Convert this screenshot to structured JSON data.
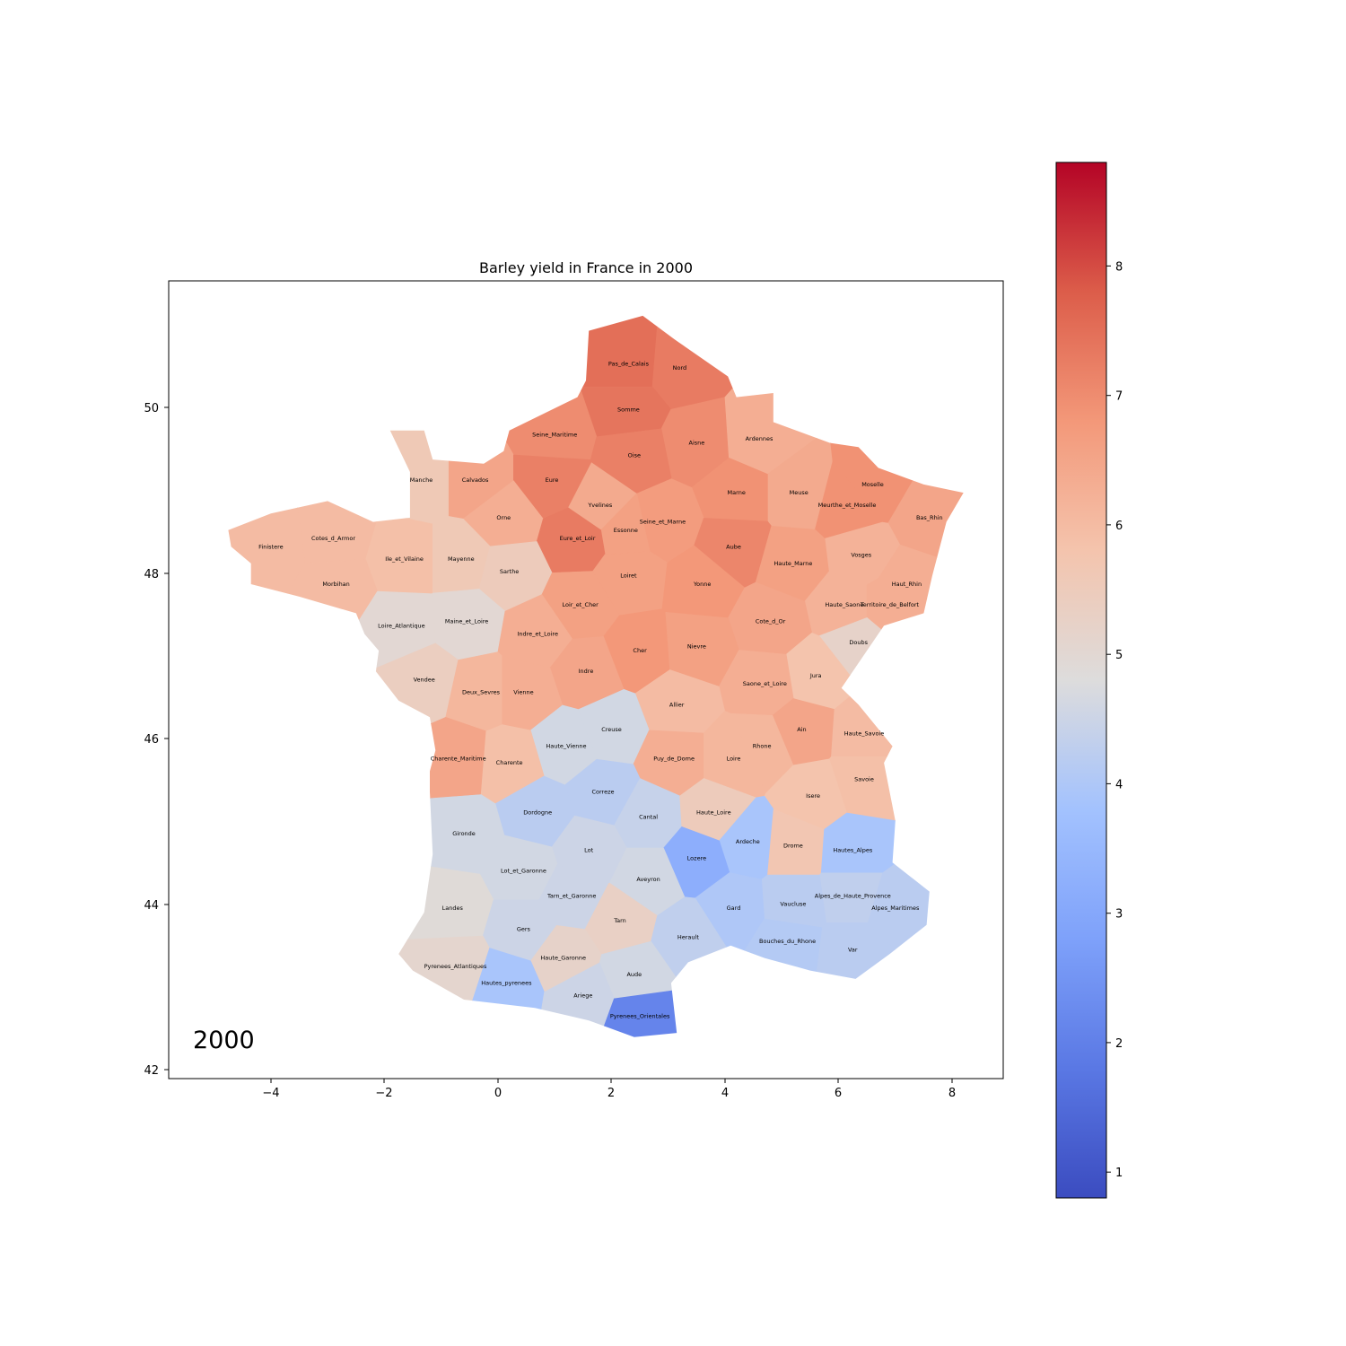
{
  "title": "Barley yield in France in 2000",
  "year_annotation": "2000",
  "colormap": {
    "name": "coolwarm",
    "min": 0.8,
    "max": 8.8,
    "low_color": "#3b4cc0",
    "mid_color": "#dddddd",
    "high_color": "#b40426"
  },
  "x_ticks": [
    "−4",
    "−2",
    "0",
    "2",
    "4",
    "6",
    "8"
  ],
  "y_ticks": [
    "42",
    "44",
    "46",
    "48",
    "50"
  ],
  "colorbar_ticks": [
    "1",
    "2",
    "3",
    "4",
    "5",
    "6",
    "7",
    "8"
  ],
  "chart_data": {
    "type": "choropleth",
    "title": "Barley yield in France in 2000",
    "xlim": [
      -5.8,
      8.9
    ],
    "ylim": [
      41.9,
      51.5
    ],
    "color_range": [
      0.8,
      8.8
    ],
    "regions": [
      {
        "name": "Pas_de_Calais",
        "lon": 2.3,
        "lat": 50.5,
        "value": 7.5
      },
      {
        "name": "Nord",
        "lon": 3.2,
        "lat": 50.45,
        "value": 7.3
      },
      {
        "name": "Somme",
        "lon": 2.3,
        "lat": 49.95,
        "value": 7.4
      },
      {
        "name": "Seine_Maritime",
        "lon": 1.0,
        "lat": 49.65,
        "value": 7.0
      },
      {
        "name": "Aisne",
        "lon": 3.5,
        "lat": 49.55,
        "value": 7.0
      },
      {
        "name": "Ardennes",
        "lon": 4.6,
        "lat": 49.6,
        "value": 6.3
      },
      {
        "name": "Oise",
        "lon": 2.4,
        "lat": 49.4,
        "value": 7.2
      },
      {
        "name": "Calvados",
        "lon": -0.4,
        "lat": 49.1,
        "value": 6.5
      },
      {
        "name": "Manche",
        "lon": -1.35,
        "lat": 49.1,
        "value": 5.6
      },
      {
        "name": "Eure",
        "lon": 0.95,
        "lat": 49.1,
        "value": 7.2
      },
      {
        "name": "Meuse",
        "lon": 5.3,
        "lat": 48.95,
        "value": 6.4
      },
      {
        "name": "Moselle",
        "lon": 6.6,
        "lat": 49.05,
        "value": 6.9
      },
      {
        "name": "Marne",
        "lon": 4.2,
        "lat": 48.95,
        "value": 6.9
      },
      {
        "name": "Yvelines",
        "lon": 1.8,
        "lat": 48.8,
        "value": 6.4
      },
      {
        "name": "Seine_et_Marne",
        "lon": 2.9,
        "lat": 48.6,
        "value": 6.7
      },
      {
        "name": "Essonne",
        "lon": 2.25,
        "lat": 48.5,
        "value": 6.6
      },
      {
        "name": "Orne",
        "lon": 0.1,
        "lat": 48.65,
        "value": 6.3
      },
      {
        "name": "Meurthe_et_Moselle",
        "lon": 6.15,
        "lat": 48.8,
        "value": 6.9
      },
      {
        "name": "Bas_Rhin",
        "lon": 7.6,
        "lat": 48.65,
        "value": 6.5
      },
      {
        "name": "Cotes_d_Armor",
        "lon": -2.9,
        "lat": 48.4,
        "value": 6.0
      },
      {
        "name": "Finistere",
        "lon": -4.0,
        "lat": 48.3,
        "value": 6.0
      },
      {
        "name": "Eure_et_Loir",
        "lon": 1.4,
        "lat": 48.4,
        "value": 7.3
      },
      {
        "name": "Ile_et_Vilaine",
        "lon": -1.65,
        "lat": 48.15,
        "value": 5.9
      },
      {
        "name": "Mayenne",
        "lon": -0.65,
        "lat": 48.15,
        "value": 5.6
      },
      {
        "name": "Aube",
        "lon": 4.15,
        "lat": 48.3,
        "value": 7.1
      },
      {
        "name": "Vosges",
        "lon": 6.4,
        "lat": 48.2,
        "value": 6.2
      },
      {
        "name": "Haute_Marne",
        "lon": 5.2,
        "lat": 48.1,
        "value": 6.6
      },
      {
        "name": "Sarthe",
        "lon": 0.2,
        "lat": 48.0,
        "value": 5.5
      },
      {
        "name": "Morbihan",
        "lon": -2.85,
        "lat": 47.85,
        "value": 6.0
      },
      {
        "name": "Loiret",
        "lon": 2.3,
        "lat": 47.95,
        "value": 6.6
      },
      {
        "name": "Yonne",
        "lon": 3.6,
        "lat": 47.85,
        "value": 6.8
      },
      {
        "name": "Haut_Rhin",
        "lon": 7.2,
        "lat": 47.85,
        "value": 6.3
      },
      {
        "name": "Haute_Saone",
        "lon": 6.1,
        "lat": 47.6,
        "value": 6.2
      },
      {
        "name": "Territoire_de_Belfort",
        "lon": 6.9,
        "lat": 47.6,
        "value": 6.3
      },
      {
        "name": "Loir_et_Cher",
        "lon": 1.45,
        "lat": 47.6,
        "value": 6.6
      },
      {
        "name": "Loire_Atlantique",
        "lon": -1.7,
        "lat": 47.35,
        "value": 5.0
      },
      {
        "name": "Maine_et_Loire",
        "lon": -0.55,
        "lat": 47.4,
        "value": 5.0
      },
      {
        "name": "Cote_d_Or",
        "lon": 4.8,
        "lat": 47.4,
        "value": 6.5
      },
      {
        "name": "Indre_et_Loire",
        "lon": 0.7,
        "lat": 47.25,
        "value": 6.3
      },
      {
        "name": "Doubs",
        "lon": 6.35,
        "lat": 47.15,
        "value": 5.2
      },
      {
        "name": "Cher",
        "lon": 2.5,
        "lat": 47.05,
        "value": 6.8
      },
      {
        "name": "Nievre",
        "lon": 3.5,
        "lat": 47.1,
        "value": 6.6
      },
      {
        "name": "Indre",
        "lon": 1.55,
        "lat": 46.8,
        "value": 6.5
      },
      {
        "name": "Vendee",
        "lon": -1.3,
        "lat": 46.7,
        "value": 5.4
      },
      {
        "name": "Jura",
        "lon": 5.6,
        "lat": 46.75,
        "value": 5.8
      },
      {
        "name": "Saone_et_Loire",
        "lon": 4.7,
        "lat": 46.65,
        "value": 6.3
      },
      {
        "name": "Deux_Sevres",
        "lon": -0.3,
        "lat": 46.55,
        "value": 6.1
      },
      {
        "name": "Vienne",
        "lon": 0.45,
        "lat": 46.55,
        "value": 6.3
      },
      {
        "name": "Allier",
        "lon": 3.15,
        "lat": 46.4,
        "value": 6.0
      },
      {
        "name": "Creuse",
        "lon": 2.0,
        "lat": 46.1,
        "value": 4.6
      },
      {
        "name": "Ain",
        "lon": 5.35,
        "lat": 46.1,
        "value": 6.5
      },
      {
        "name": "Haute_Savoie",
        "lon": 6.45,
        "lat": 46.05,
        "value": 6.0
      },
      {
        "name": "Haute_Vienne",
        "lon": 1.2,
        "lat": 45.9,
        "value": 4.6
      },
      {
        "name": "Rhone",
        "lon": 4.65,
        "lat": 45.9,
        "value": 6.1
      },
      {
        "name": "Charente_Maritime",
        "lon": -0.7,
        "lat": 45.75,
        "value": 6.5
      },
      {
        "name": "Charente",
        "lon": 0.2,
        "lat": 45.7,
        "value": 5.9
      },
      {
        "name": "Puy_de_Dome",
        "lon": 3.1,
        "lat": 45.75,
        "value": 6.3
      },
      {
        "name": "Loire",
        "lon": 4.15,
        "lat": 45.75,
        "value": 6.1
      },
      {
        "name": "Savoie",
        "lon": 6.45,
        "lat": 45.5,
        "value": 5.9
      },
      {
        "name": "Correze",
        "lon": 1.85,
        "lat": 45.35,
        "value": 4.2
      },
      {
        "name": "Isere",
        "lon": 5.55,
        "lat": 45.3,
        "value": 5.8
      },
      {
        "name": "Dordogne",
        "lon": 0.7,
        "lat": 45.1,
        "value": 4.2
      },
      {
        "name": "Cantal",
        "lon": 2.65,
        "lat": 45.05,
        "value": 4.4
      },
      {
        "name": "Haute_Loire",
        "lon": 3.8,
        "lat": 45.1,
        "value": 5.5
      },
      {
        "name": "Gironde",
        "lon": -0.6,
        "lat": 44.85,
        "value": 4.6
      },
      {
        "name": "Ardeche",
        "lon": 4.4,
        "lat": 44.75,
        "value": 3.9
      },
      {
        "name": "Drome",
        "lon": 5.2,
        "lat": 44.7,
        "value": 5.7
      },
      {
        "name": "Hautes_Alpes",
        "lon": 6.25,
        "lat": 44.65,
        "value": 3.9
      },
      {
        "name": "Lot",
        "lon": 1.6,
        "lat": 44.65,
        "value": 4.5
      },
      {
        "name": "Lozere",
        "lon": 3.5,
        "lat": 44.55,
        "value": 3.2
      },
      {
        "name": "Lot_et_Garonne",
        "lon": 0.45,
        "lat": 44.4,
        "value": 4.6
      },
      {
        "name": "Aveyron",
        "lon": 2.65,
        "lat": 44.3,
        "value": 4.6
      },
      {
        "name": "Tarn_et_Garonne",
        "lon": 1.3,
        "lat": 44.1,
        "value": 4.5
      },
      {
        "name": "Alpes_de_Haute_Provence",
        "lon": 6.25,
        "lat": 44.1,
        "value": 4.3
      },
      {
        "name": "Vaucluse",
        "lon": 5.2,
        "lat": 44.0,
        "value": 4.2
      },
      {
        "name": "Gard",
        "lon": 4.15,
        "lat": 43.95,
        "value": 4.0
      },
      {
        "name": "Landes",
        "lon": -0.8,
        "lat": 43.95,
        "value": 4.9
      },
      {
        "name": "Alpes_Maritimes",
        "lon": 7.0,
        "lat": 43.95,
        "value": 4.2
      },
      {
        "name": "Tarn",
        "lon": 2.15,
        "lat": 43.8,
        "value": 5.3
      },
      {
        "name": "Gers",
        "lon": 0.45,
        "lat": 43.7,
        "value": 4.5
      },
      {
        "name": "Herault",
        "lon": 3.35,
        "lat": 43.6,
        "value": 4.3
      },
      {
        "name": "Bouches_du_Rhone",
        "lon": 5.1,
        "lat": 43.55,
        "value": 4.1
      },
      {
        "name": "Var",
        "lon": 6.25,
        "lat": 43.45,
        "value": 4.2
      },
      {
        "name": "Haute_Garonne",
        "lon": 1.15,
        "lat": 43.35,
        "value": 5.2
      },
      {
        "name": "Pyrenees_Atlantiques",
        "lon": -0.75,
        "lat": 43.25,
        "value": 5.1
      },
      {
        "name": "Aude",
        "lon": 2.4,
        "lat": 43.15,
        "value": 4.6
      },
      {
        "name": "Hautes_pyrenees",
        "lon": 0.15,
        "lat": 43.05,
        "value": 3.9
      },
      {
        "name": "Ariege",
        "lon": 1.5,
        "lat": 42.9,
        "value": 4.5
      },
      {
        "name": "Pyrenees_Orientales",
        "lon": 2.5,
        "lat": 42.65,
        "value": 2.1
      }
    ]
  }
}
